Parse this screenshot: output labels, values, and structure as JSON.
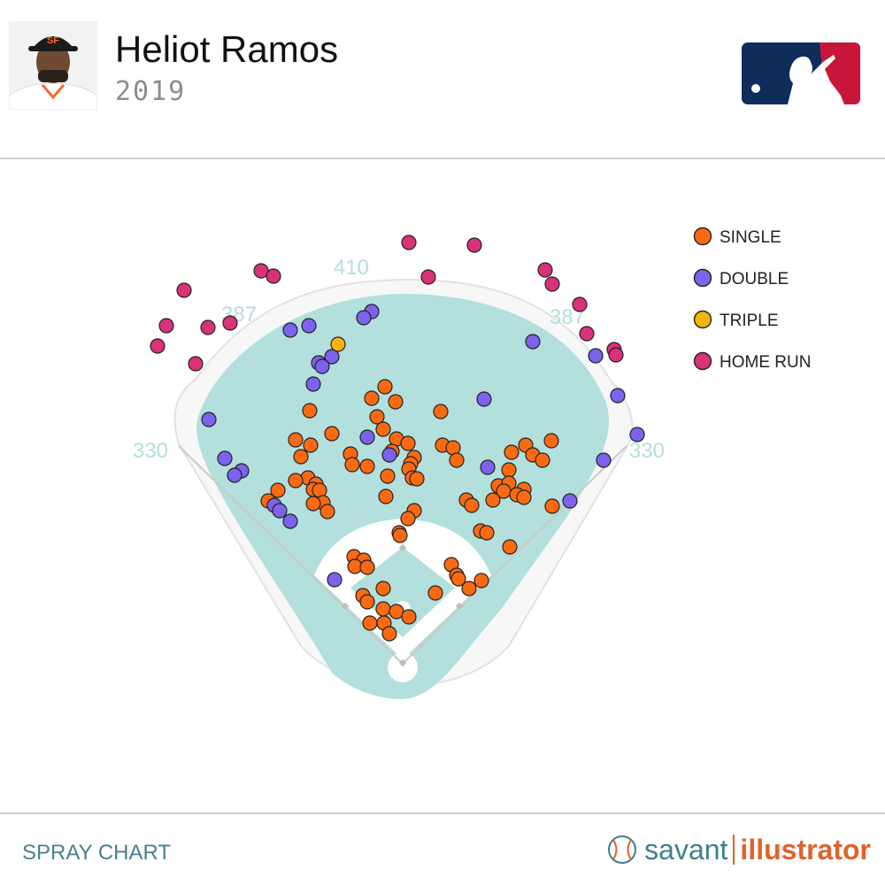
{
  "header": {
    "player_name": "Heliot Ramos",
    "season": "2019",
    "logo_icon": "mlb-logo-icon",
    "avatar_icon": "player-headshot-icon"
  },
  "footer": {
    "title": "SPRAY CHART",
    "brand_left": "savant",
    "brand_right": "illustrator",
    "brand_icon": "baseball-icon"
  },
  "colors": {
    "field_grass": "#b3dfdc",
    "warning_track": "#f7f7f7",
    "infield_dirt": "#ffffff",
    "distance_label": "#b3dfdc",
    "accent": "#e0622b",
    "brand_teal": "#3f7f8c"
  },
  "chart_data": {
    "type": "scatter",
    "fence_distances": [
      "330",
      "387",
      "410",
      "387",
      "330"
    ],
    "legend": [
      {
        "key": "single",
        "label": "SINGLE",
        "color": "#fb6a10"
      },
      {
        "key": "double",
        "label": "DOUBLE",
        "color": "#7c62ec"
      },
      {
        "key": "triple",
        "label": "TRIPLE",
        "color": "#f8b30e"
      },
      {
        "key": "home_run",
        "label": "HOME RUN",
        "color": "#d9317a"
      }
    ],
    "legend_position": "top-right",
    "series": [
      {
        "key": "single",
        "points": [
          [
            435,
            437
          ],
          [
            420,
            450
          ],
          [
            447,
            454
          ],
          [
            350,
            464
          ],
          [
            498,
            465
          ],
          [
            426,
            471
          ],
          [
            433,
            485
          ],
          [
            375,
            490
          ],
          [
            334,
            497
          ],
          [
            351,
            503
          ],
          [
            448,
            496
          ],
          [
            461,
            501
          ],
          [
            500,
            503
          ],
          [
            512,
            506
          ],
          [
            594,
            503
          ],
          [
            623,
            498
          ],
          [
            578,
            511
          ],
          [
            602,
            514
          ],
          [
            613,
            520
          ],
          [
            340,
            516
          ],
          [
            396,
            513
          ],
          [
            443,
            510
          ],
          [
            415,
            527
          ],
          [
            398,
            525
          ],
          [
            468,
            517
          ],
          [
            464,
            524
          ],
          [
            462,
            530
          ],
          [
            516,
            520
          ],
          [
            575,
            531
          ],
          [
            438,
            538
          ],
          [
            466,
            540
          ],
          [
            471,
            541
          ],
          [
            348,
            540
          ],
          [
            334,
            543
          ],
          [
            357,
            547
          ],
          [
            354,
            553
          ],
          [
            361,
            554
          ],
          [
            314,
            554
          ],
          [
            563,
            549
          ],
          [
            575,
            546
          ],
          [
            569,
            555
          ],
          [
            592,
            553
          ],
          [
            584,
            559
          ],
          [
            592,
            562
          ],
          [
            303,
            566
          ],
          [
            365,
            568
          ],
          [
            354,
            569
          ],
          [
            370,
            578
          ],
          [
            436,
            561
          ],
          [
            527,
            565
          ],
          [
            533,
            571
          ],
          [
            557,
            565
          ],
          [
            468,
            577
          ],
          [
            461,
            586
          ],
          [
            624,
            572
          ],
          [
            451,
            602
          ],
          [
            452,
            605
          ],
          [
            543,
            600
          ],
          [
            550,
            602
          ],
          [
            576,
            618
          ],
          [
            400,
            629
          ],
          [
            411,
            633
          ],
          [
            401,
            640
          ],
          [
            415,
            641
          ],
          [
            510,
            638
          ],
          [
            516,
            650
          ],
          [
            518,
            654
          ],
          [
            530,
            665
          ],
          [
            544,
            656
          ],
          [
            433,
            665
          ],
          [
            410,
            673
          ],
          [
            492,
            670
          ],
          [
            415,
            680
          ],
          [
            433,
            688
          ],
          [
            448,
            691
          ],
          [
            462,
            697
          ],
          [
            418,
            704
          ],
          [
            434,
            704
          ],
          [
            440,
            716
          ]
        ]
      },
      {
        "key": "double",
        "points": [
          [
            420,
            352
          ],
          [
            411,
            359
          ],
          [
            349,
            368
          ],
          [
            328,
            373
          ],
          [
            602,
            386
          ],
          [
            375,
            403
          ],
          [
            360,
            410
          ],
          [
            364,
            414
          ],
          [
            354,
            434
          ],
          [
            547,
            451
          ],
          [
            236,
            474
          ],
          [
            415,
            494
          ],
          [
            440,
            514
          ],
          [
            254,
            518
          ],
          [
            273,
            532
          ],
          [
            265,
            537
          ],
          [
            551,
            528
          ],
          [
            698,
            447
          ],
          [
            682,
            520
          ],
          [
            720,
            491
          ],
          [
            673,
            402
          ],
          [
            644,
            566
          ],
          [
            310,
            571
          ],
          [
            316,
            577
          ],
          [
            328,
            589
          ],
          [
            378,
            655
          ]
        ]
      },
      {
        "key": "triple",
        "points": [
          [
            382,
            389
          ]
        ]
      },
      {
        "key": "home_run",
        "points": [
          [
            462,
            274
          ],
          [
            536,
            277
          ],
          [
            295,
            306
          ],
          [
            309,
            312
          ],
          [
            484,
            313
          ],
          [
            616,
            305
          ],
          [
            624,
            321
          ],
          [
            208,
            328
          ],
          [
            655,
            344
          ],
          [
            188,
            368
          ],
          [
            235,
            370
          ],
          [
            260,
            365
          ],
          [
            663,
            377
          ],
          [
            178,
            391
          ],
          [
            221,
            411
          ],
          [
            694,
            395
          ],
          [
            696,
            401
          ]
        ]
      }
    ]
  }
}
